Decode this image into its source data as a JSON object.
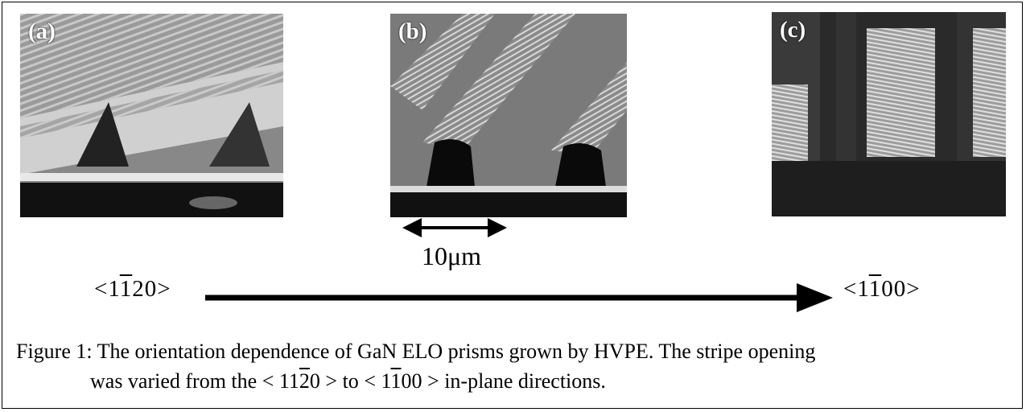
{
  "panels": [
    {
      "label": "(a)"
    },
    {
      "label": "(b)"
    },
    {
      "label": "(c)"
    }
  ],
  "scale_bar": {
    "label": "10μm"
  },
  "directions": {
    "left": {
      "pre": "<1",
      "bar": "1",
      "post": "20>"
    },
    "right": {
      "pre": "<1",
      "bar": "1",
      "post": "00>"
    }
  },
  "caption": {
    "line1": "Figure 1: The orientation dependence of GaN ELO prisms grown by HVPE. The stripe opening",
    "line2_start": "was varied from the",
    "dir1_pre": "< 11",
    "dir1_bar": "2",
    "dir1_post": "0 >",
    "line2_mid": "to",
    "dir2_pre": "< 1",
    "dir2_bar": "1",
    "dir2_post": "00 >",
    "line2_end": "in-plane directions."
  },
  "colors": {
    "ink": "#000000",
    "background": "#ffffff"
  }
}
